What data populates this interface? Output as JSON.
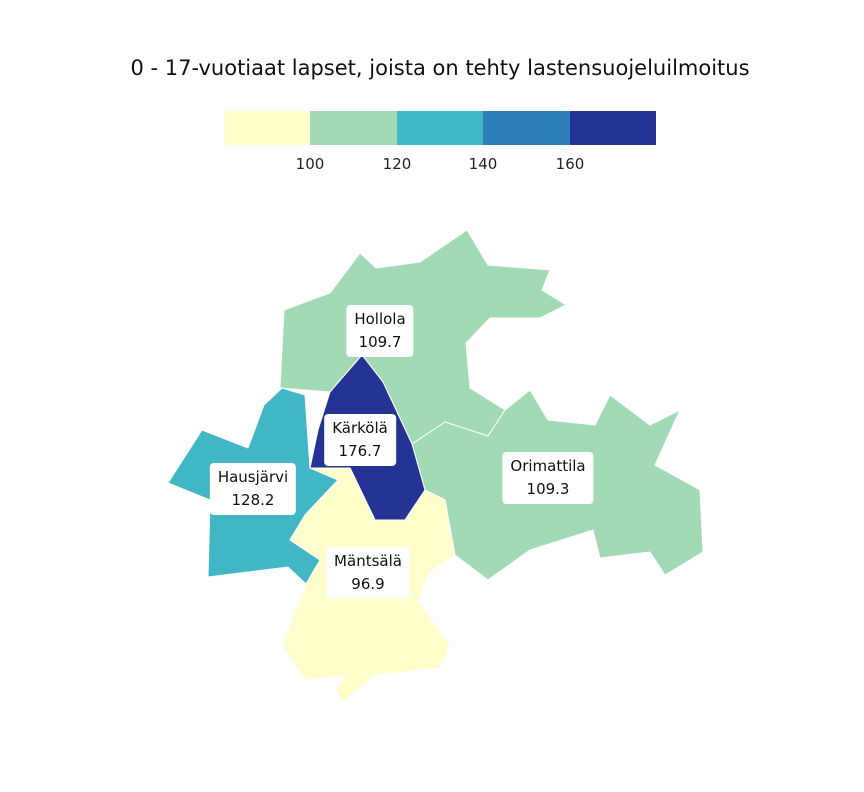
{
  "title": "0 - 17-vuotiaat lapset, joista on tehty lastensuojeluilmoitus",
  "legend": {
    "colors": [
      "#ffffcc",
      "#a1dab4",
      "#41b6c4",
      "#2c7fb8",
      "#253494"
    ],
    "ticks": [
      "100",
      "120",
      "140",
      "160"
    ]
  },
  "regions": [
    {
      "name": "Hollola",
      "value": "109.7",
      "color": "#a1dab4"
    },
    {
      "name": "Kärkölä",
      "value": "176.7",
      "color": "#253494"
    },
    {
      "name": "Hausjärvi",
      "value": "128.2",
      "color": "#41b6c4"
    },
    {
      "name": "Orimattila",
      "value": "109.3",
      "color": "#a1dab4"
    },
    {
      "name": "Mäntsälä",
      "value": "96.9",
      "color": "#ffffcc"
    }
  ]
}
